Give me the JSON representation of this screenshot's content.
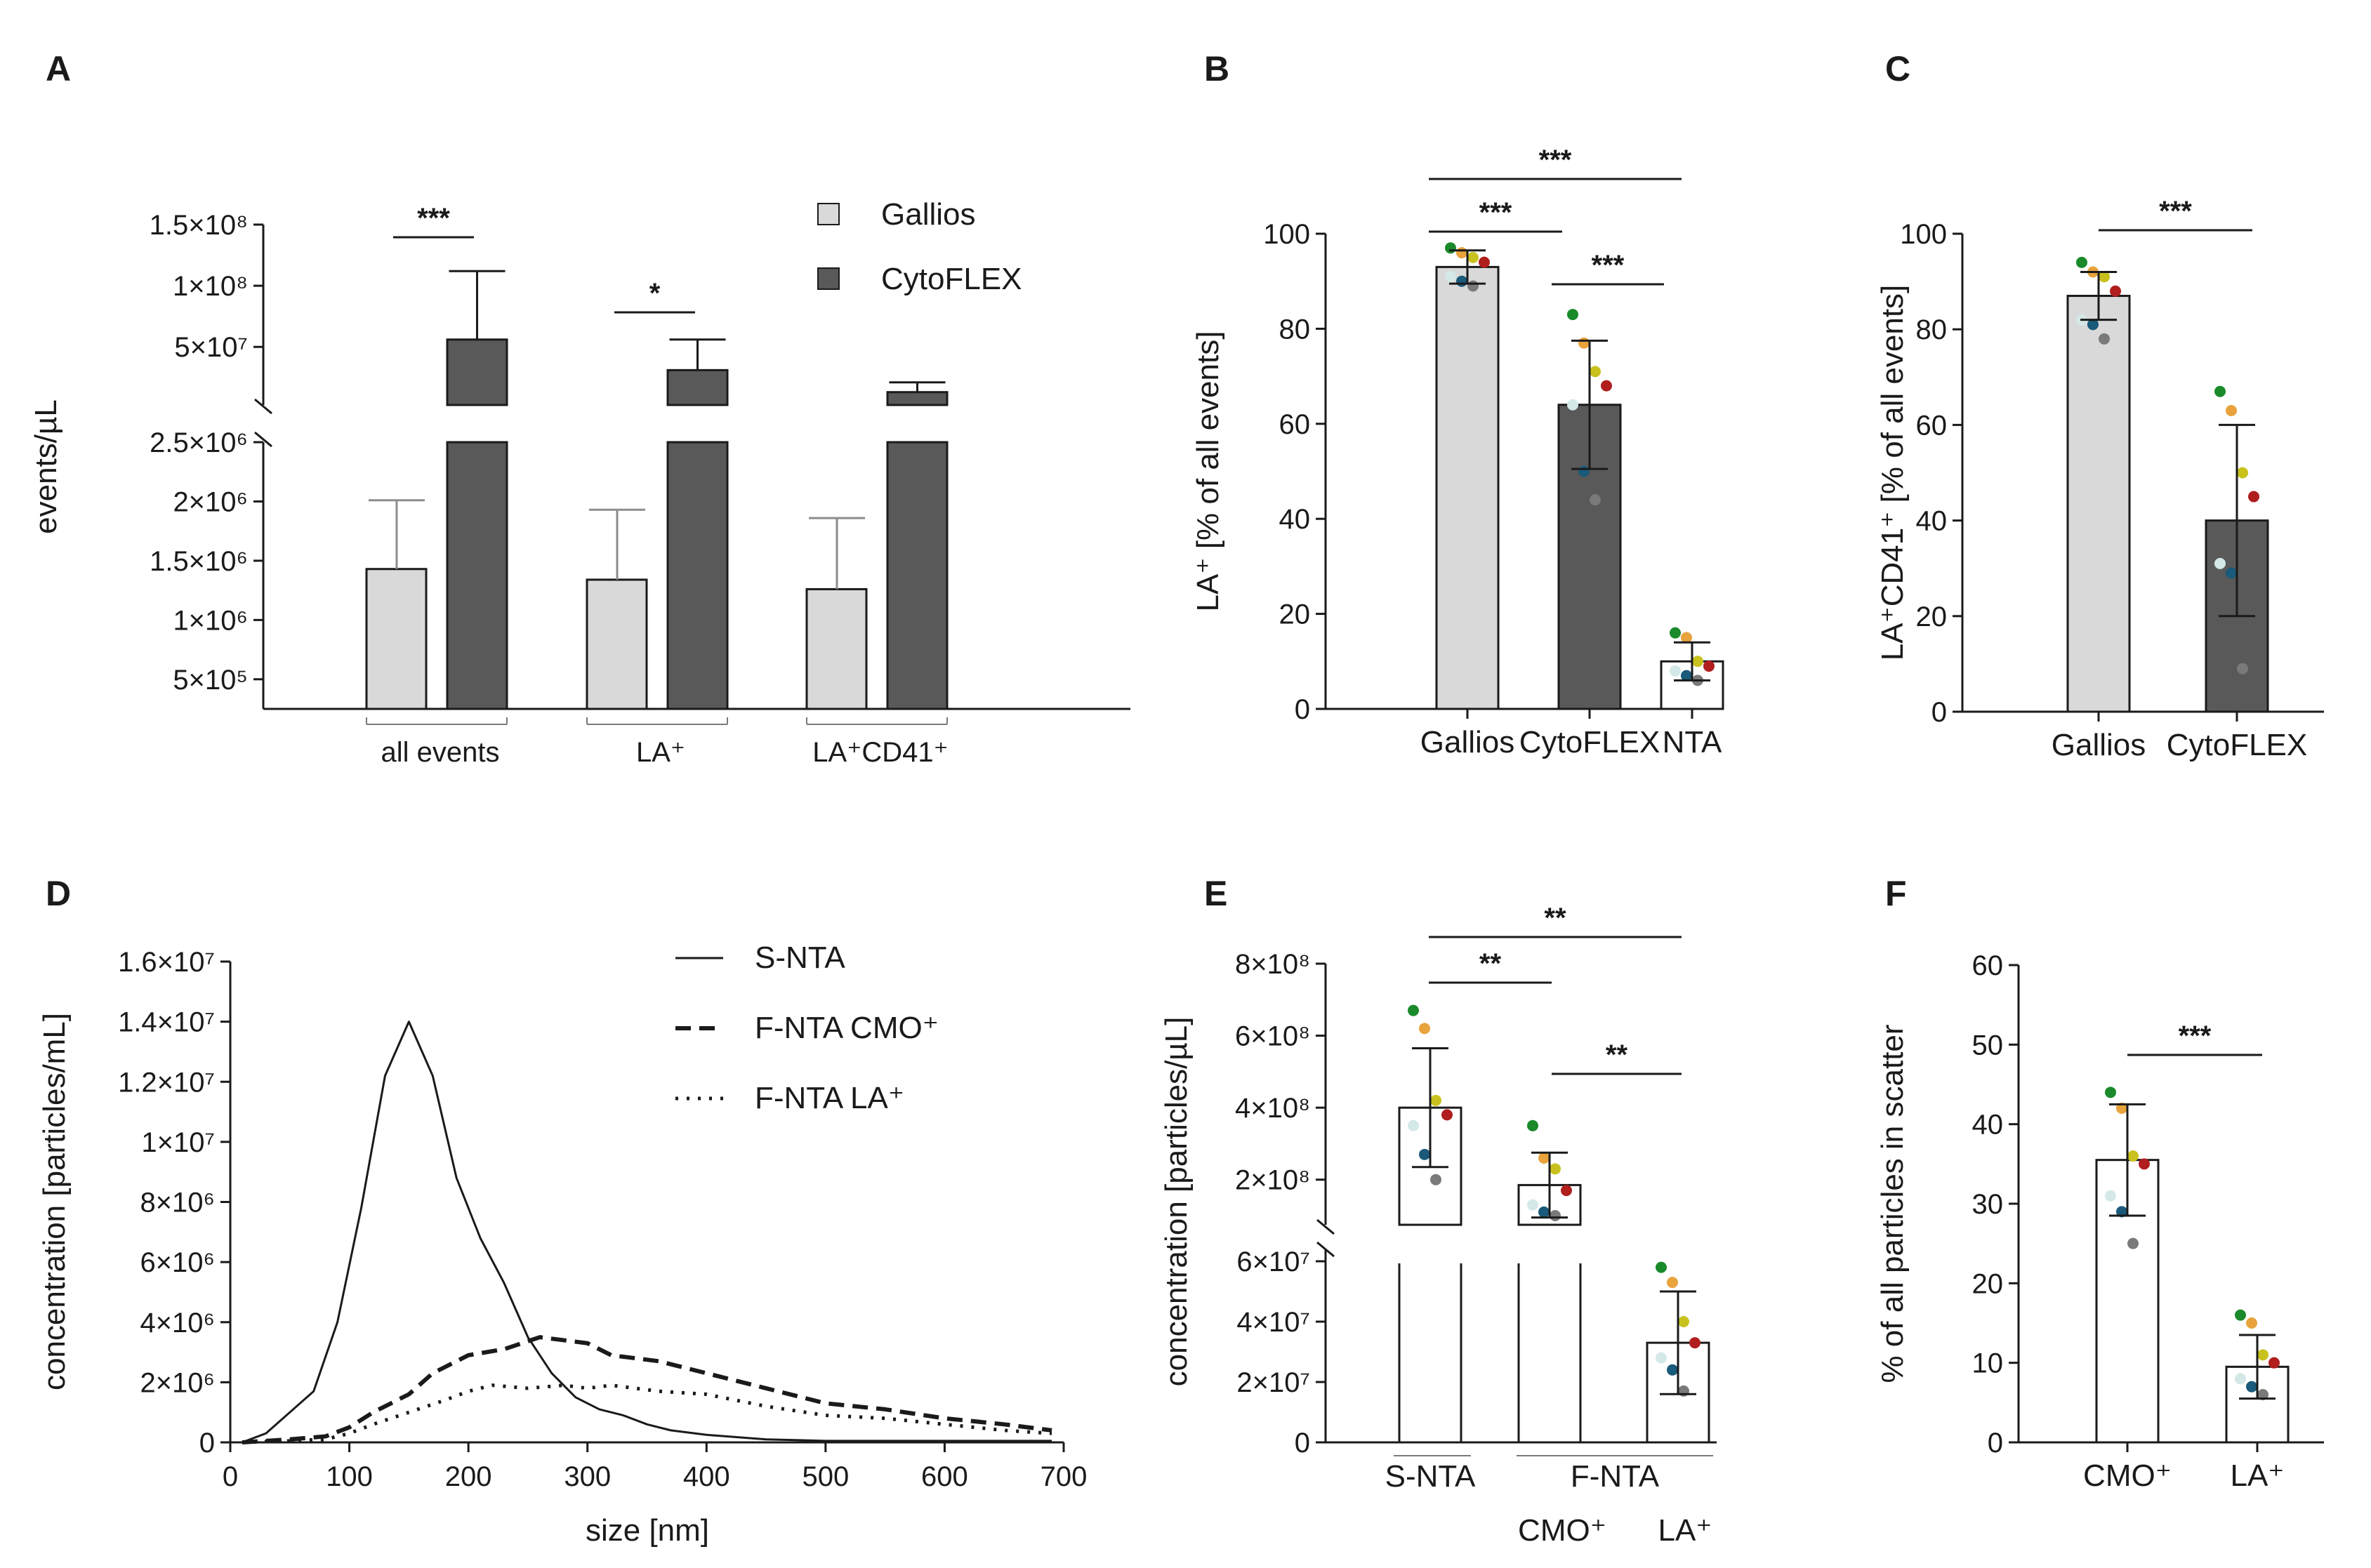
{
  "chart_data": [
    {
      "panel": "A",
      "type": "bar",
      "ylabel": "events/µL",
      "categories": [
        "all events",
        "LA⁺",
        "LA⁺CD41⁺"
      ],
      "series": [
        {
          "name": "Gallios",
          "color": "#d9d9d9",
          "values": [
            1430000,
            1340000,
            1260000
          ],
          "sd": [
            580000,
            590000,
            600000
          ]
        },
        {
          "name": "CytoFLEX",
          "color": "#595959",
          "values": [
            56000000,
            31000000,
            13000000
          ],
          "sd": [
            56000000,
            25000000,
            8000000
          ]
        }
      ],
      "ylim_lower": [
        250000,
        2500000
      ],
      "ylim_upper": [
        2500000,
        150000000
      ],
      "yticks_lower": [
        "5×10⁵",
        "1×10⁶",
        "1.5×10⁶",
        "2×10⁶",
        "2.5×10⁶"
      ],
      "yticks_upper": [
        "5×10⁷",
        "1×10⁸",
        "1.5×10⁸"
      ],
      "significance": [
        {
          "between": "all events Gallios vs CytoFLEX",
          "label": "***"
        },
        {
          "between": "LA⁺ Gallios vs CytoFLEX",
          "label": "*"
        }
      ]
    },
    {
      "panel": "B",
      "type": "bar",
      "ylabel": "LA⁺ [% of all events]",
      "categories": [
        "Gallios",
        "CytoFLEX",
        "NTA"
      ],
      "values": [
        93,
        64,
        10
      ],
      "sd": [
        3.5,
        13.5,
        4
      ],
      "colors": [
        "#d9d9d9",
        "#595959",
        "#ffffff"
      ],
      "points": [
        [
          97,
          96,
          95,
          94,
          91,
          90,
          89
        ],
        [
          83,
          77,
          71,
          68,
          64,
          50,
          44
        ],
        [
          16,
          15,
          10,
          9,
          8,
          7,
          6
        ]
      ],
      "ylim": [
        0,
        100
      ],
      "yticks": [
        "0",
        "20",
        "40",
        "60",
        "80",
        "100"
      ],
      "significance": [
        {
          "between": "Gallios vs CytoFLEX",
          "label": "***"
        },
        {
          "between": "Gallios vs NTA",
          "label": "***"
        },
        {
          "between": "CytoFLEX vs NTA",
          "label": "***"
        }
      ]
    },
    {
      "panel": "C",
      "type": "bar",
      "ylabel": "LA⁺CD41⁺ [% of all events]",
      "categories": [
        "Gallios",
        "CytoFLEX"
      ],
      "values": [
        87,
        40
      ],
      "sd": [
        5,
        20
      ],
      "colors": [
        "#d9d9d9",
        "#595959"
      ],
      "points": [
        [
          94,
          92,
          91,
          88,
          82,
          81,
          78
        ],
        [
          67,
          63,
          50,
          45,
          31,
          29,
          9
        ]
      ],
      "ylim": [
        0,
        100
      ],
      "yticks": [
        "0",
        "20",
        "40",
        "60",
        "80",
        "100"
      ],
      "significance": [
        {
          "between": "Gallios vs CytoFLEX",
          "label": "***"
        }
      ]
    },
    {
      "panel": "D",
      "type": "line",
      "xlabel": "size [nm]",
      "ylabel": "concentration [particles/mL]",
      "xlim": [
        0,
        700
      ],
      "ylim": [
        0,
        16000000
      ],
      "xticks": [
        "0",
        "100",
        "200",
        "300",
        "400",
        "500",
        "600",
        "700"
      ],
      "yticks": [
        "0",
        "2×10⁶",
        "4×10⁶",
        "6×10⁶",
        "8×10⁶",
        "1×10⁷",
        "1.2×10⁷",
        "1.4×10⁷",
        "1.6×10⁷"
      ],
      "series": [
        {
          "name": "S-NTA",
          "style": "solid",
          "x": [
            10,
            30,
            50,
            70,
            90,
            110,
            130,
            150,
            170,
            190,
            210,
            230,
            250,
            270,
            290,
            310,
            330,
            350,
            370,
            400,
            450,
            500,
            550,
            600,
            650,
            690
          ],
          "y": [
            0,
            300000,
            1000000,
            1700000,
            4000000,
            7800000,
            12200000,
            14000000,
            12200000,
            8800000,
            6800000,
            5300000,
            3500000,
            2300000,
            1500000,
            1100000,
            900000,
            600000,
            400000,
            250000,
            100000,
            50000,
            50000,
            50000,
            50000,
            50000
          ]
        },
        {
          "name": "F-NTA CMO⁺",
          "style": "dashed",
          "x": [
            10,
            50,
            80,
            100,
            120,
            150,
            170,
            200,
            230,
            260,
            280,
            300,
            320,
            340,
            360,
            400,
            450,
            500,
            550,
            600,
            650,
            690
          ],
          "y": [
            0,
            100000,
            200000,
            500000,
            1000000,
            1600000,
            2300000,
            2900000,
            3100000,
            3500000,
            3400000,
            3300000,
            2900000,
            2800000,
            2700000,
            2300000,
            1800000,
            1300000,
            1100000,
            800000,
            600000,
            400000
          ]
        },
        {
          "name": "F-NTA LA⁺",
          "style": "dotted",
          "x": [
            10,
            50,
            80,
            100,
            120,
            150,
            180,
            200,
            220,
            250,
            280,
            300,
            320,
            340,
            360,
            400,
            450,
            500,
            550,
            600,
            650,
            690
          ],
          "y": [
            0,
            50000,
            100000,
            300000,
            600000,
            1000000,
            1400000,
            1700000,
            1900000,
            1800000,
            1900000,
            1800000,
            1900000,
            1800000,
            1700000,
            1600000,
            1200000,
            900000,
            800000,
            600000,
            400000,
            300000
          ]
        }
      ]
    },
    {
      "panel": "E",
      "type": "bar",
      "ylabel": "concentration [particles/µL]",
      "categories": [
        "S-NTA",
        "F-NTA CMO⁺",
        "F-NTA LA⁺"
      ],
      "category_groups": {
        "left": "S-NTA",
        "right": "F-NTA",
        "sub": [
          "CMO⁺",
          "LA⁺"
        ]
      },
      "values": [
        400000000,
        185000000,
        33000000
      ],
      "sd": [
        165000000,
        90000000,
        17000000
      ],
      "colors": [
        "#ffffff",
        "#ffffff",
        "#ffffff"
      ],
      "points": [
        [
          670000000,
          620000000,
          420000000,
          380000000,
          350000000,
          270000000,
          200000000
        ],
        [
          350000000,
          260000000,
          230000000,
          170000000,
          130000000,
          110000000,
          100000000
        ],
        [
          58000000,
          53000000,
          40000000,
          33000000,
          28000000,
          24000000,
          17000000
        ]
      ],
      "ylim_lower": [
        0,
        60000000
      ],
      "ylim_upper": [
        60000000,
        800000000
      ],
      "yticks_lower": [
        "0",
        "2×10⁷",
        "4×10⁷",
        "6×10⁷"
      ],
      "yticks_upper": [
        "2×10⁸",
        "4×10⁸",
        "6×10⁸",
        "8×10⁸"
      ],
      "significance": [
        {
          "between": "S-NTA vs F-NTA CMO⁺",
          "label": "**"
        },
        {
          "between": "S-NTA vs F-NTA LA⁺",
          "label": "**"
        },
        {
          "between": "F-NTA CMO⁺ vs F-NTA LA⁺",
          "label": "**"
        }
      ]
    },
    {
      "panel": "F",
      "type": "bar",
      "ylabel": "% of all particles in scatter",
      "categories": [
        "CMO⁺",
        "LA⁺"
      ],
      "values": [
        35.5,
        9.5
      ],
      "sd": [
        7,
        4
      ],
      "colors": [
        "#ffffff",
        "#ffffff"
      ],
      "points": [
        [
          44,
          42,
          36,
          35,
          31,
          29,
          25
        ],
        [
          16,
          15,
          11,
          10,
          8,
          7,
          6
        ]
      ],
      "ylim": [
        0,
        60
      ],
      "yticks": [
        "0",
        "10",
        "20",
        "30",
        "40",
        "50",
        "60"
      ],
      "significance": [
        {
          "between": "CMO⁺ vs LA⁺",
          "label": "***"
        }
      ]
    }
  ],
  "point_colors": [
    "#1a8a2a",
    "#e8a33d",
    "#c9c21e",
    "#b01e1e",
    "#d4e8e8",
    "#1a5a7a",
    "#7a7a7a",
    "#e08a3a",
    "#9ad8d0",
    "#e8b0a0"
  ]
}
